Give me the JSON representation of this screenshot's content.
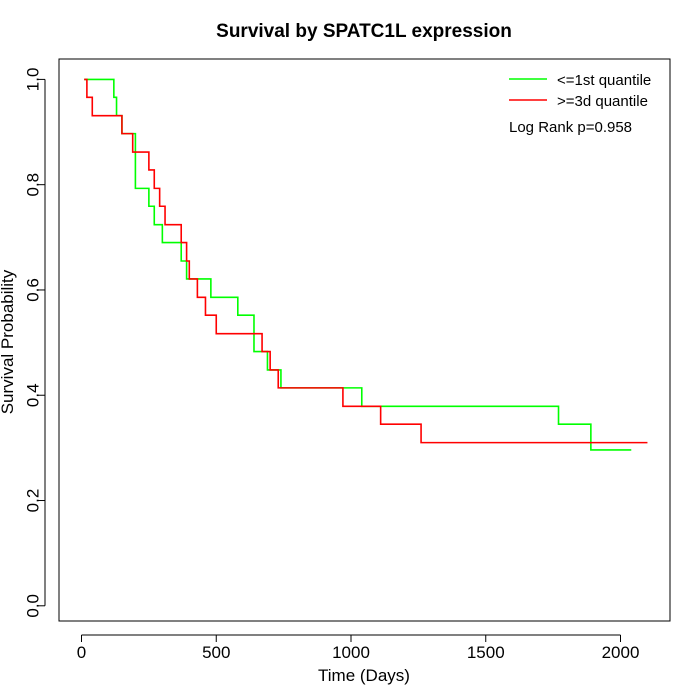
{
  "chart_data": {
    "type": "line",
    "title": "Survival by SPATC1L expression",
    "xlabel": "Time (Days)",
    "ylabel": "Survival Probability",
    "xlim": [
      0,
      2100
    ],
    "ylim": [
      0,
      1.0
    ],
    "x_ticks": [
      "0",
      "500",
      "1000",
      "1500",
      "2000"
    ],
    "y_ticks": [
      "0.0",
      "0.2",
      "0.4",
      "0.6",
      "0.8",
      "1.0"
    ],
    "annotation": "Log Rank p=0.958",
    "legend_position": "top-right",
    "series": [
      {
        "name": "<=1st quantile",
        "color": "#00ff00",
        "x": [
          10,
          120,
          130,
          150,
          200,
          250,
          270,
          300,
          370,
          390,
          480,
          580,
          640,
          690,
          740,
          1040,
          1770,
          1890,
          2040
        ],
        "y": [
          1.0,
          0.966,
          0.931,
          0.897,
          0.793,
          0.759,
          0.724,
          0.69,
          0.655,
          0.621,
          0.586,
          0.552,
          0.483,
          0.448,
          0.414,
          0.379,
          0.345,
          0.296,
          0.296
        ]
      },
      {
        "name": ">=3d quantile",
        "color": "#ff0000",
        "x": [
          10,
          20,
          40,
          150,
          190,
          250,
          270,
          290,
          310,
          370,
          390,
          400,
          430,
          460,
          500,
          670,
          700,
          730,
          970,
          1110,
          1260,
          2100
        ],
        "y": [
          1.0,
          0.966,
          0.931,
          0.897,
          0.862,
          0.828,
          0.793,
          0.759,
          0.724,
          0.69,
          0.655,
          0.621,
          0.586,
          0.552,
          0.517,
          0.483,
          0.448,
          0.414,
          0.379,
          0.345,
          0.31,
          0.31
        ]
      }
    ]
  }
}
